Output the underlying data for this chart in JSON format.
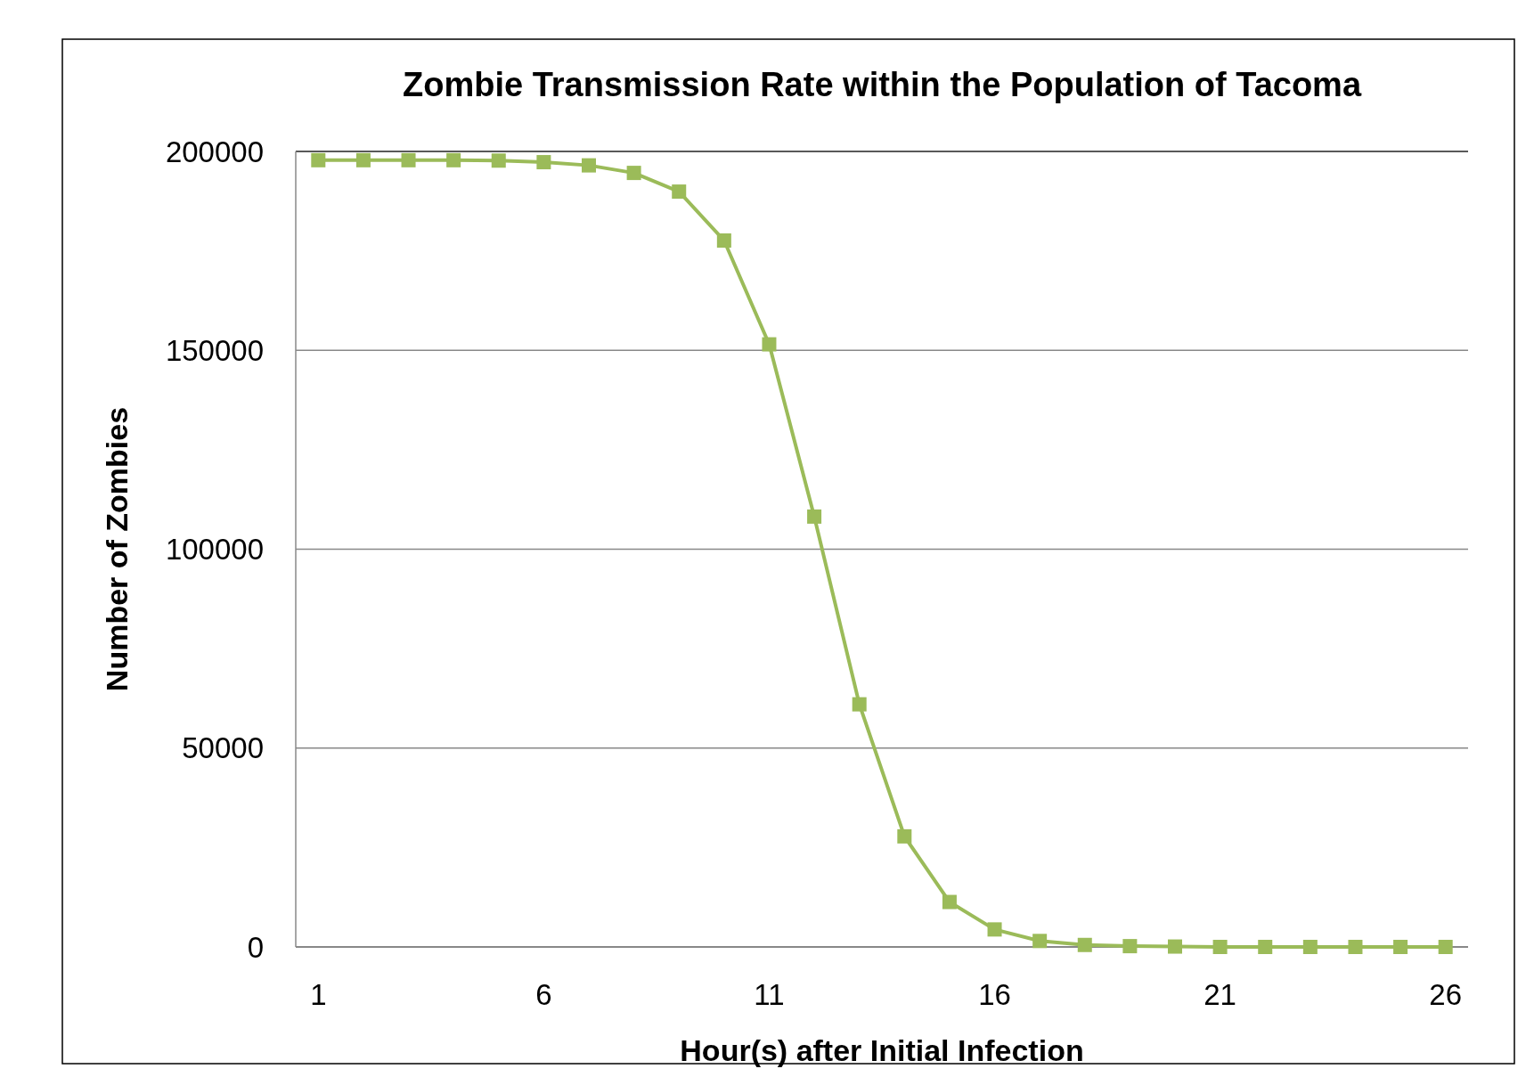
{
  "chart_data": {
    "type": "line",
    "title": "Zombie Transmission Rate within the Population of Tacoma",
    "xlabel": "Hour(s) after Initial Infection",
    "ylabel": "Number of Zombies",
    "x": [
      1,
      2,
      3,
      4,
      5,
      6,
      7,
      8,
      9,
      10,
      11,
      12,
      13,
      14,
      15,
      16,
      17,
      18,
      19,
      20,
      21,
      22,
      23,
      24,
      25,
      26
    ],
    "series": [
      {
        "color": "#9bbb59",
        "values": [
          197800,
          197800,
          197800,
          197800,
          197700,
          197300,
          196500,
          194600,
          189900,
          177600,
          151500,
          108200,
          61000,
          27800,
          11300,
          4400,
          1500,
          500,
          200,
          100,
          0,
          0,
          0,
          0,
          0,
          0
        ]
      }
    ],
    "xlim": [
      0.5,
      26.5
    ],
    "xticks": [
      1,
      6,
      11,
      16,
      21,
      26
    ],
    "ylim": [
      0,
      200000
    ],
    "yticks": [
      0,
      50000,
      100000,
      150000,
      200000
    ],
    "grid": "y",
    "marker": "square",
    "line_style": "solid"
  }
}
